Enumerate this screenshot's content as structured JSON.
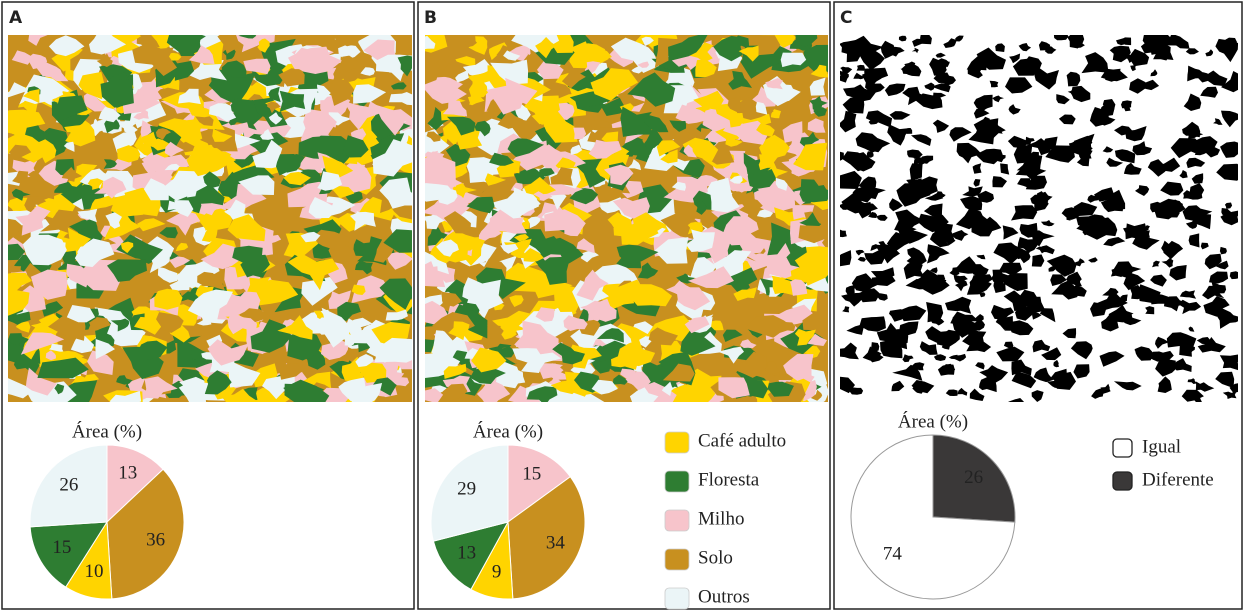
{
  "panels": [
    {
      "label": "A"
    },
    {
      "label": "B"
    },
    {
      "label": "C"
    }
  ],
  "legend": {
    "items": [
      {
        "name": "Café adulto",
        "color": "#ffd400"
      },
      {
        "name": "Floresta",
        "color": "#2e7d32"
      },
      {
        "name": "Milho",
        "color": "#f7c4cb"
      },
      {
        "name": "Solo",
        "color": "#c8901f"
      },
      {
        "name": "Outros",
        "color": "#ebf5f7"
      }
    ]
  },
  "chart_data": [
    {
      "type": "pie",
      "title": "Área (%)",
      "categories": [
        "Milho",
        "Solo",
        "Café adulto",
        "Floresta",
        "Outros"
      ],
      "values": [
        13,
        36,
        10,
        15,
        26
      ],
      "colors": [
        "#f7c4cb",
        "#c8901f",
        "#ffd400",
        "#2e7d32",
        "#ebf5f7"
      ]
    },
    {
      "type": "pie",
      "title": "Área (%)",
      "categories": [
        "Milho",
        "Solo",
        "Café adulto",
        "Floresta",
        "Outros"
      ],
      "values": [
        15,
        34,
        9,
        13,
        29
      ],
      "colors": [
        "#f7c4cb",
        "#c8901f",
        "#ffd400",
        "#2e7d32",
        "#ebf5f7"
      ]
    },
    {
      "type": "pie",
      "title": "Área (%)",
      "categories": [
        "Diferente",
        "Igual"
      ],
      "values": [
        26,
        74
      ],
      "colors": [
        "#3a3838",
        "#ffffff"
      ],
      "label_colors": [
        "#ffffff",
        "#333333"
      ],
      "legend": true
    }
  ]
}
